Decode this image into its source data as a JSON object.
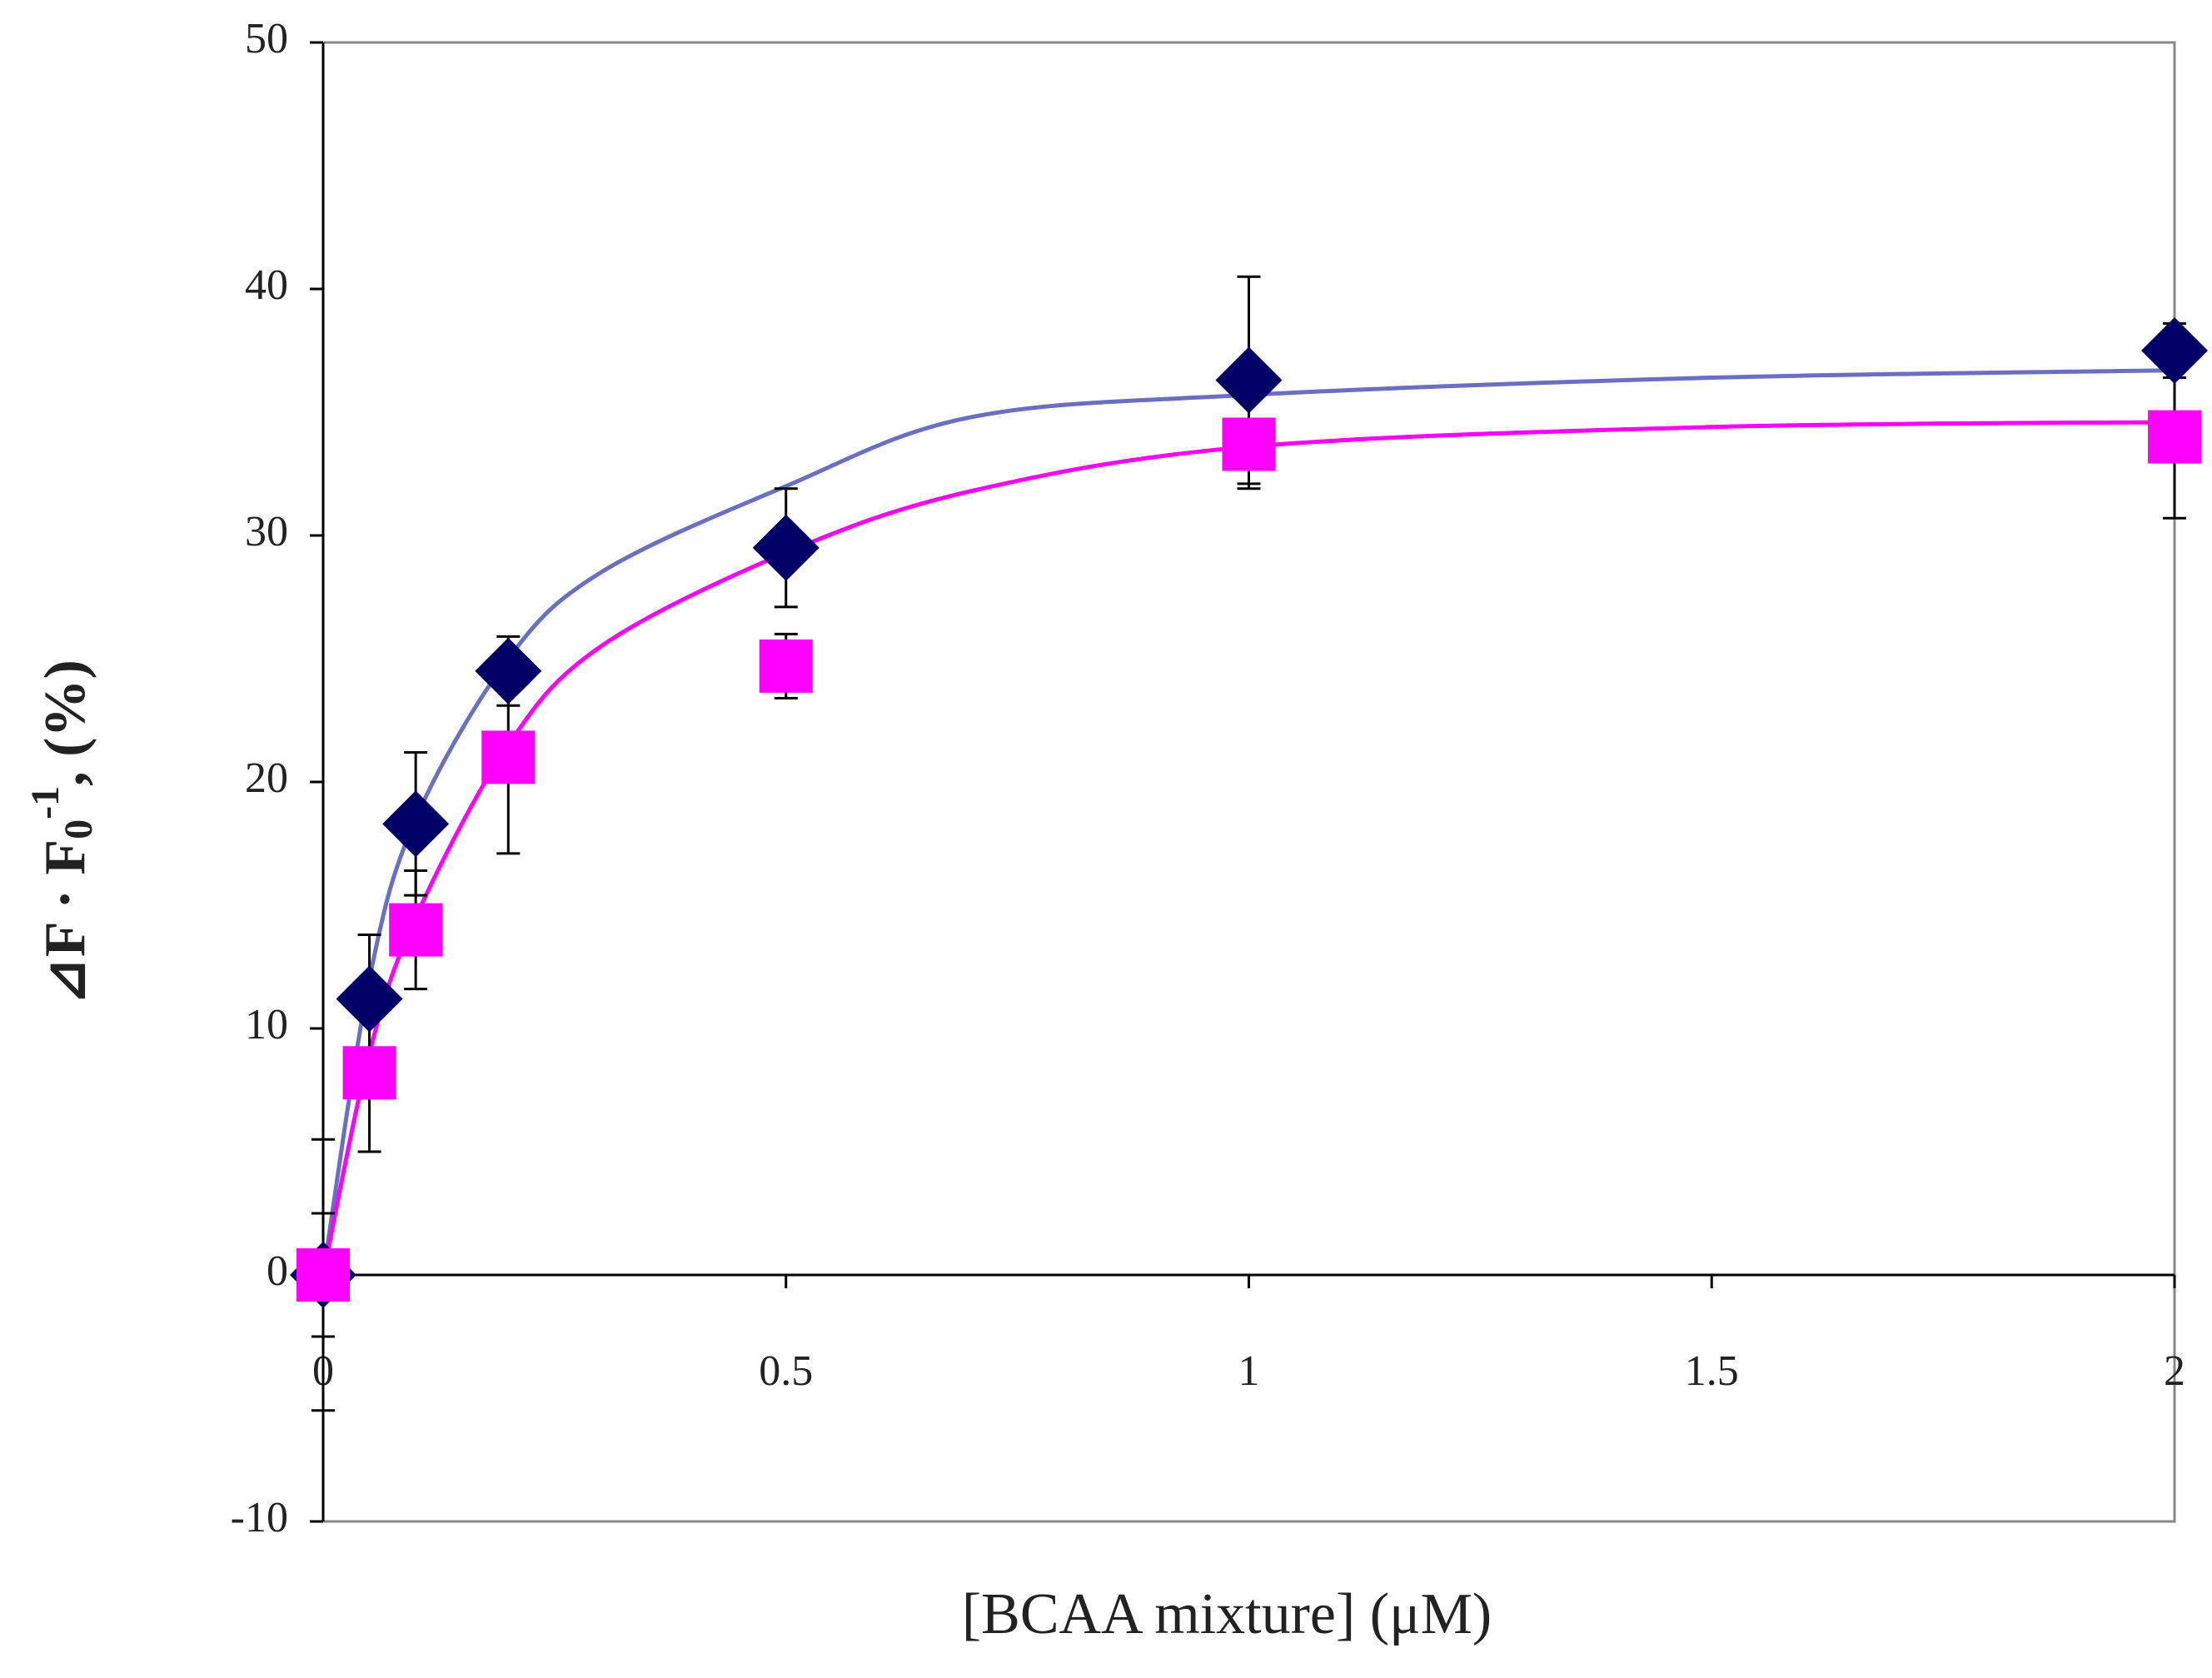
{
  "chart_data": {
    "type": "scatter",
    "xlabel": "[BCAA mixture] (μM)",
    "ylabel_parts": [
      "⊿F · F",
      "0",
      "-1",
      ", (%)"
    ],
    "xlim": [
      0,
      2
    ],
    "xticks": [
      0,
      0.5,
      1,
      1.5,
      2
    ],
    "ylim": [
      -10,
      50
    ],
    "yticks": [
      -10,
      0,
      10,
      20,
      30,
      40,
      50
    ],
    "x": [
      0,
      0.05,
      0.1,
      0.2,
      0.5,
      1,
      2
    ],
    "series": [
      {
        "marker": "diamond",
        "color": "#000066",
        "line_color": "#6a6fc4",
        "values": [
          0,
          11.2,
          18.3,
          24.5,
          29.5,
          36.3,
          37.5
        ],
        "errors": [
          5.5,
          2.6,
          2.9,
          1.4,
          2.4,
          4.2,
          1.1
        ],
        "curve": {
          "x": [
            0,
            0.05,
            0.1,
            0.2,
            0.3,
            0.5,
            0.7,
            1,
            1.5,
            2
          ],
          "values": [
            0,
            12,
            18.5,
            25,
            28.5,
            32,
            34.8,
            35.7,
            36.4,
            36.7
          ]
        }
      },
      {
        "marker": "square",
        "color": "#ff00ff",
        "line_color": "#ff00ff",
        "values": [
          0,
          8.2,
          14,
          21,
          24.7,
          33.7,
          34
        ],
        "errors": [
          2.5,
          3.2,
          2.4,
          3.9,
          1.3,
          1.8,
          3.3
        ],
        "curve": {
          "x": [
            0,
            0.05,
            0.1,
            0.2,
            0.3,
            0.5,
            0.7,
            1,
            1.5,
            2
          ],
          "values": [
            0,
            9,
            14.5,
            21.5,
            25.5,
            29.3,
            31.8,
            33.6,
            34.4,
            34.6
          ]
        }
      }
    ]
  }
}
